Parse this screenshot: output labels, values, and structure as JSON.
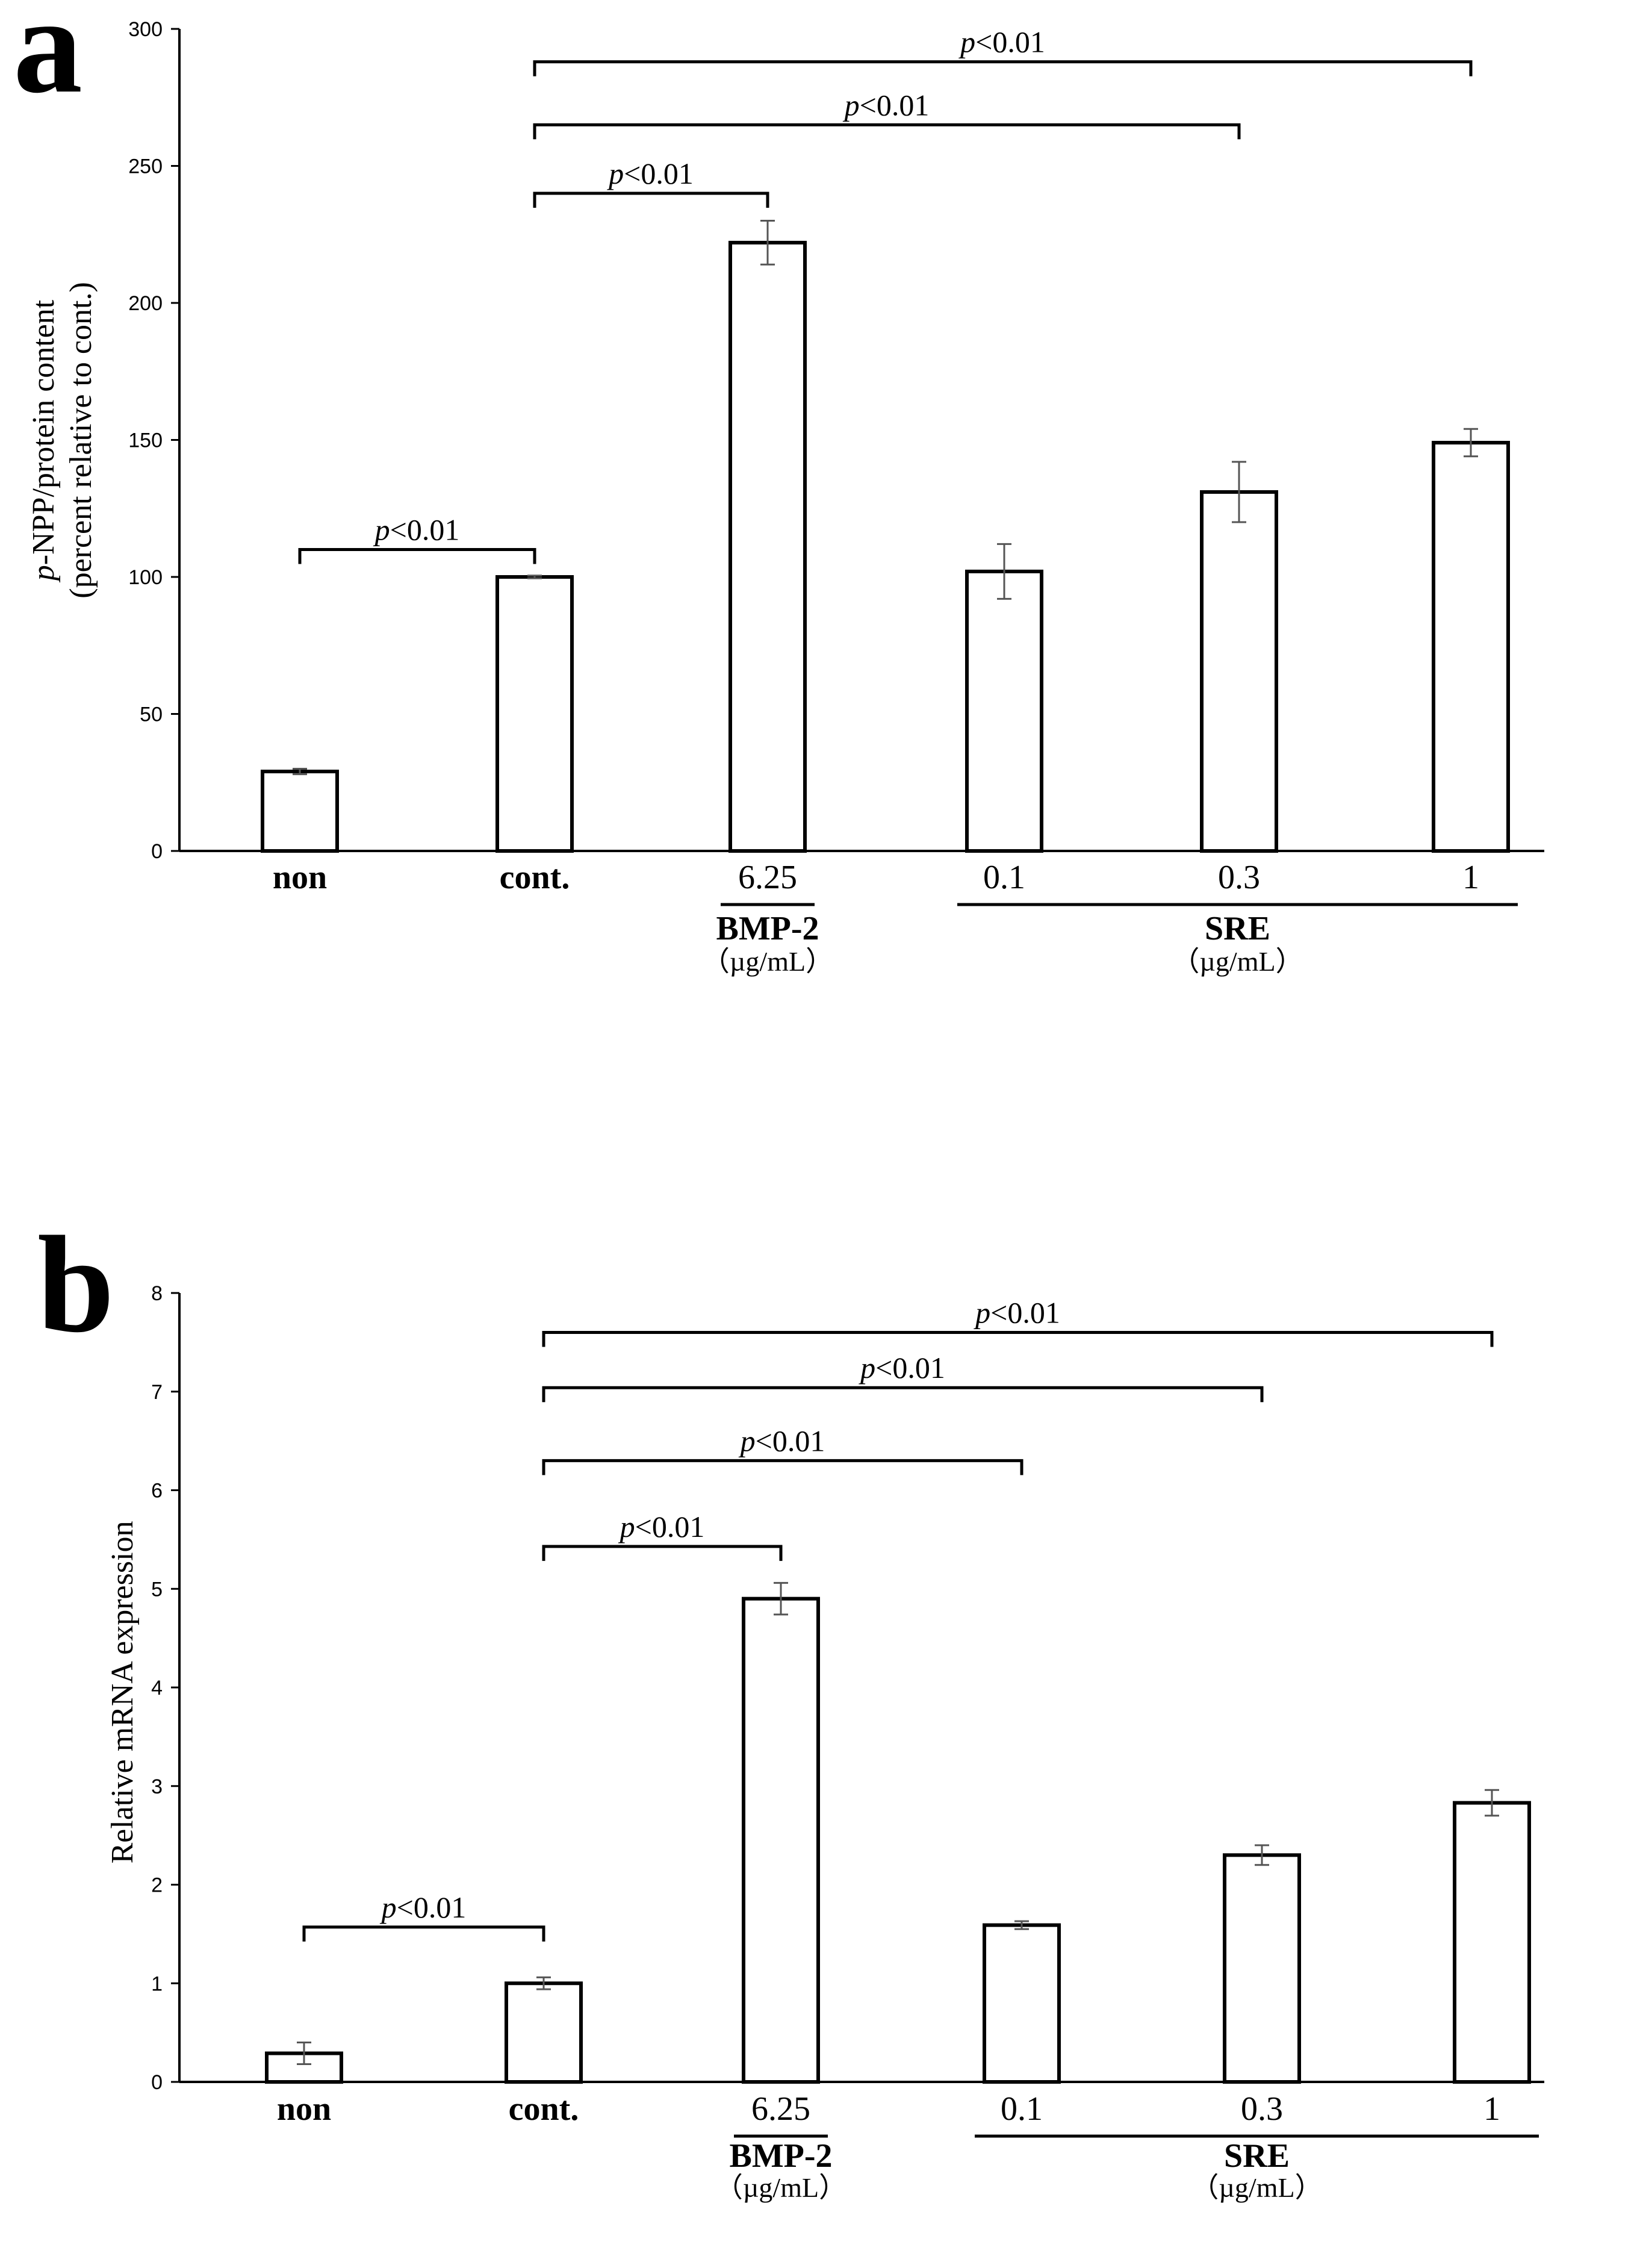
{
  "chart_data": [
    {
      "type": "bar",
      "panel": "a",
      "ylabel_lines": [
        "p-NPP/protein content",
        "(percent relative to cont.)"
      ],
      "ylabel_italic_prefix": "p",
      "ylim": [
        0,
        300
      ],
      "yticks": [
        0,
        50,
        100,
        150,
        200,
        250,
        300
      ],
      "categories": [
        "non",
        "cont.",
        "6.25",
        "0.1",
        "0.3",
        "1"
      ],
      "category_bold": [
        true,
        true,
        false,
        false,
        false,
        false
      ],
      "values": [
        29,
        100,
        222,
        102,
        131,
        149
      ],
      "errors": [
        1,
        0.5,
        8,
        10,
        11,
        5
      ],
      "groups": [
        {
          "label": "BMP-2",
          "unit": "（µg/mL）",
          "from": 2,
          "to": 2
        },
        {
          "label": "SRE",
          "unit": "（µg/mL）",
          "from": 3,
          "to": 5
        }
      ],
      "significance": [
        {
          "from": 0,
          "to": 1,
          "level": 110,
          "p": "p",
          "text": "<0.01"
        },
        {
          "from": 1,
          "to": 2,
          "level": 240,
          "p": "p",
          "text": "<0.01"
        },
        {
          "from": 1,
          "to": 4,
          "level": 265,
          "p": "p",
          "text": "<0.01"
        },
        {
          "from": 1,
          "to": 5,
          "level": 288,
          "p": "p",
          "text": "<0.01"
        }
      ]
    },
    {
      "type": "bar",
      "panel": "b",
      "ylabel_lines": [
        "Relative mRNA expression"
      ],
      "ylabel_italic_prefix": "",
      "ylim": [
        0,
        8
      ],
      "yticks": [
        0,
        1,
        2,
        3,
        4,
        5,
        6,
        7,
        8
      ],
      "categories": [
        "non",
        "cont.",
        "6.25",
        "0.1",
        "0.3",
        "1"
      ],
      "category_bold": [
        true,
        true,
        false,
        false,
        false,
        false
      ],
      "values": [
        0.29,
        1.0,
        4.9,
        1.59,
        2.3,
        2.83
      ],
      "errors": [
        0.11,
        0.06,
        0.16,
        0.04,
        0.1,
        0.13
      ],
      "groups": [
        {
          "label": "BMP-2",
          "unit": "（µg/mL）",
          "from": 2,
          "to": 2
        },
        {
          "label": "SRE",
          "unit": "（µg/mL）",
          "from": 3,
          "to": 5
        }
      ],
      "significance": [
        {
          "from": 0,
          "to": 1,
          "level": 1.57,
          "p": "p",
          "text": "<0.01"
        },
        {
          "from": 1,
          "to": 2,
          "level": 5.43,
          "p": "p",
          "text": "<0.01"
        },
        {
          "from": 1,
          "to": 3,
          "level": 6.3,
          "p": "p",
          "text": "<0.01"
        },
        {
          "from": 1,
          "to": 4,
          "level": 7.04,
          "p": "p",
          "text": "<0.01"
        },
        {
          "from": 1,
          "to": 5,
          "level": 7.6,
          "p": "p",
          "text": "<0.01"
        }
      ]
    }
  ],
  "colors": {
    "bar_fill": "#ffffff",
    "bar_stroke": "#000000",
    "error_bar": "#555555",
    "axis": "#000000"
  }
}
